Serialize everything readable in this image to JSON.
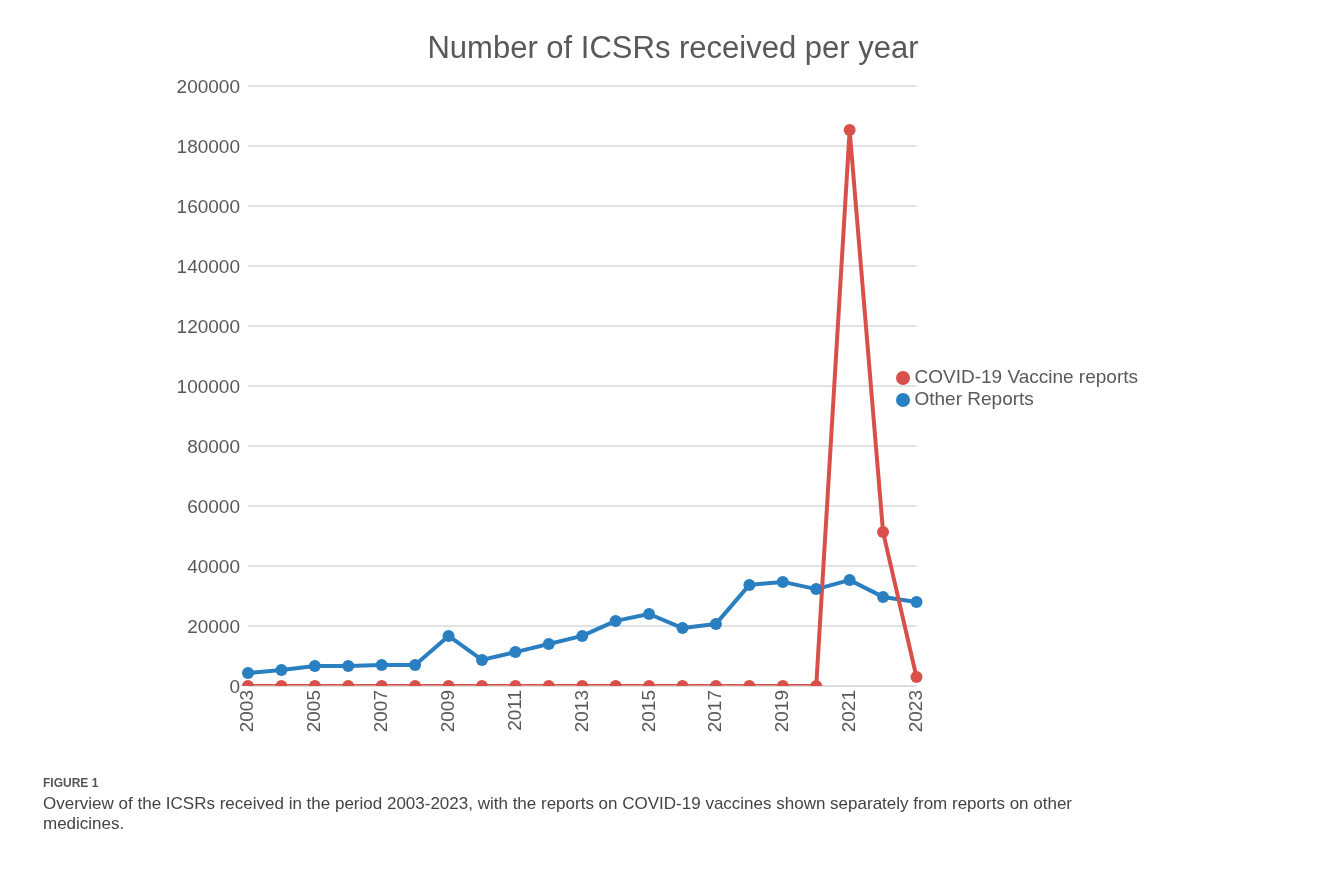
{
  "chart_data": {
    "type": "line",
    "title": "Number of ICSRs received per year",
    "categories": [
      "2003",
      null,
      "2005",
      null,
      "2007",
      null,
      "2009",
      null,
      "2011",
      null,
      "2013",
      null,
      "2015",
      null,
      "2017",
      null,
      "2019",
      null,
      "2021",
      null,
      "2023"
    ],
    "series": [
      {
        "name": "Other Reports",
        "color": "#2a7fc1",
        "values": [
          4300,
          5300,
          6700,
          6700,
          7000,
          7000,
          16700,
          8700,
          11300,
          14000,
          16700,
          21700,
          24000,
          19300,
          20700,
          33700,
          34700,
          32300,
          35300,
          29700,
          28000
        ]
      },
      {
        "name": "COVID-19 Vaccine reports",
        "color": "#d9504a",
        "values": [
          0,
          0,
          0,
          0,
          0,
          0,
          0,
          0,
          0,
          0,
          0,
          0,
          0,
          0,
          0,
          0,
          0,
          0,
          185300,
          51300,
          3000
        ]
      }
    ],
    "ylim": [
      0,
      200000
    ],
    "yticks": [
      0,
      20000,
      40000,
      60000,
      80000,
      100000,
      120000,
      140000,
      160000,
      180000,
      200000
    ],
    "grid": "y",
    "legend": "right",
    "marker": "circle",
    "line_style": "solid",
    "annotations": [
      "FIGURE 1",
      "Overview of the ICSRs received in the period 2003-2023, with the reports on COVID-19 vaccines shown separately from reports on other medicines."
    ]
  }
}
